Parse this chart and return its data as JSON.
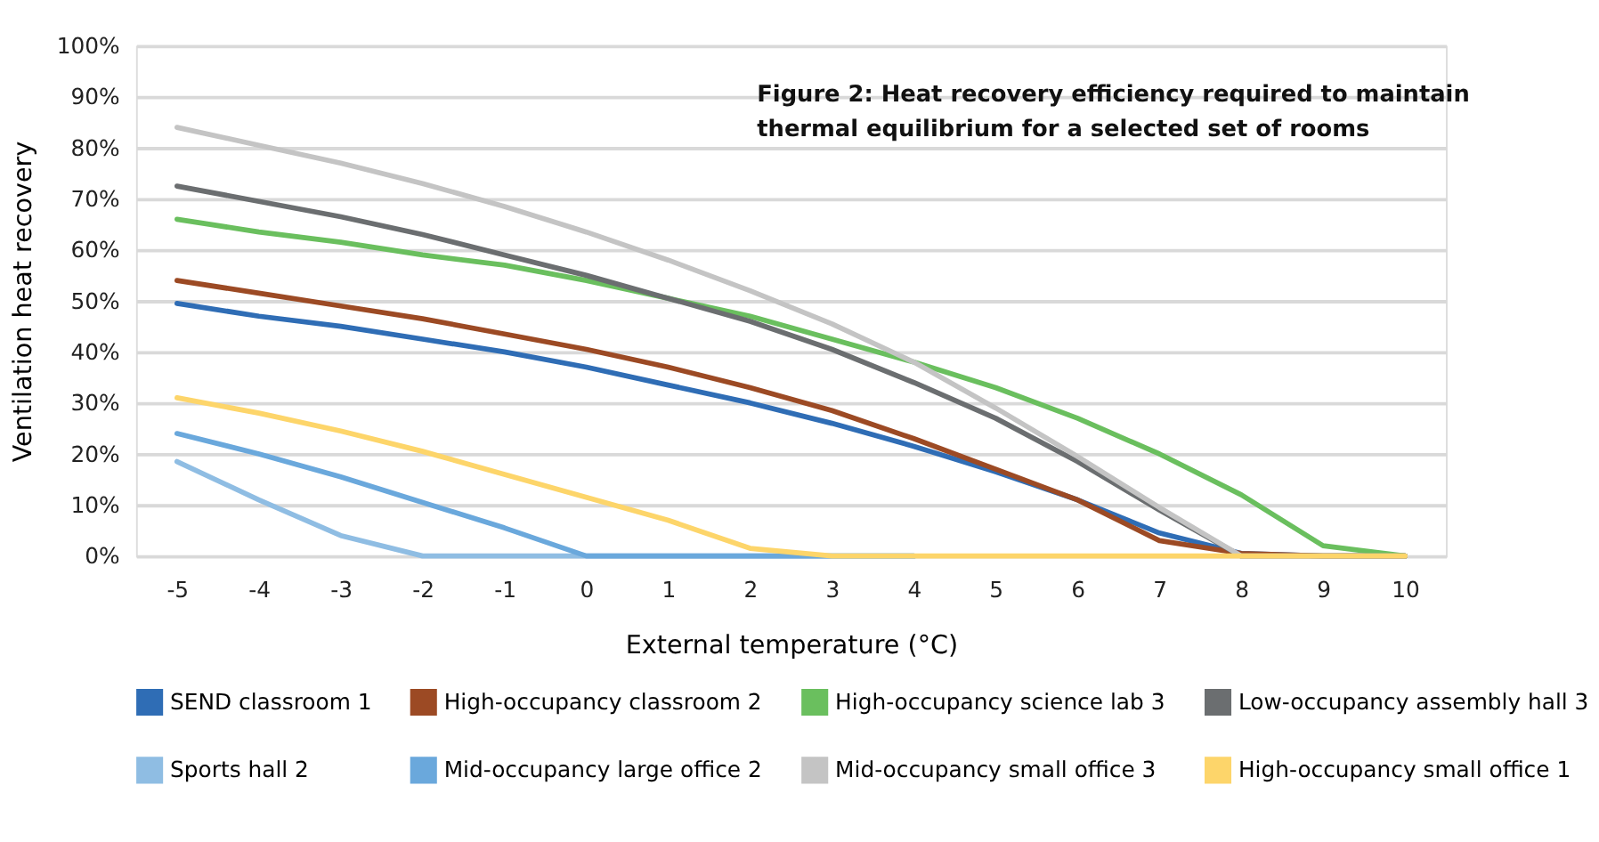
{
  "chart_data": {
    "type": "line",
    "title": "Figure 2: Heat recovery efficiency required to maintain thermal equilibrium for a selected set of rooms",
    "xlabel": "External temperature (°C)",
    "ylabel": "Ventilation heat recovery",
    "categories": [
      "-5",
      "-4",
      "-3",
      "-2",
      "-1",
      "0",
      "1",
      "2",
      "3",
      "4",
      "5",
      "6",
      "7",
      "8",
      "9",
      "10"
    ],
    "series": [
      {
        "name": "SEND classroom 1",
        "color": "#2f6db5",
        "values": [
          49.5,
          47,
          45,
          42.5,
          40,
          37,
          33.5,
          30,
          26,
          21.5,
          16.5,
          11,
          4.5,
          0.5,
          0,
          0
        ]
      },
      {
        "name": "High-occupancy classroom 2",
        "color": "#9c4a24",
        "values": [
          54,
          51.5,
          49,
          46.5,
          43.5,
          40.5,
          37,
          33,
          28.5,
          23,
          17,
          11,
          3,
          0.5,
          0,
          0
        ]
      },
      {
        "name": "High-occupancy science lab 3",
        "color": "#6abf5e",
        "values": [
          66,
          63.5,
          61.5,
          59,
          57,
          54,
          50.5,
          47,
          42.5,
          38,
          33,
          27,
          20,
          12,
          2,
          0
        ]
      },
      {
        "name": "Low-occupancy assembly hall 3",
        "color": "#6b6e70",
        "values": [
          72.5,
          69.5,
          66.5,
          63,
          59,
          55,
          50.5,
          46,
          40.5,
          34,
          27,
          18.5,
          9,
          0,
          0,
          0
        ]
      },
      {
        "name": "Sports hall 2",
        "color": "#8fbde3",
        "values": [
          18.5,
          11,
          4,
          0,
          0,
          0,
          0,
          0,
          0,
          0,
          null,
          null,
          null,
          null,
          null,
          null
        ]
      },
      {
        "name": "Mid-occupancy large office 2",
        "color": "#6aa8dc",
        "values": [
          24,
          20,
          15.5,
          10.5,
          5.5,
          0,
          0,
          0,
          0,
          0,
          null,
          null,
          null,
          null,
          null,
          null
        ]
      },
      {
        "name": "Mid-occupancy small office 3",
        "color": "#c4c4c4",
        "values": [
          84,
          80.5,
          77,
          73,
          68.5,
          63.5,
          58,
          52,
          45.5,
          38,
          29,
          19.5,
          9.5,
          0,
          0,
          0
        ]
      },
      {
        "name": "High-occupancy small office 1",
        "color": "#fdd56a",
        "values": [
          31,
          28,
          24.5,
          20.5,
          16,
          11.5,
          7,
          1.5,
          0,
          0,
          0,
          0,
          0,
          0,
          0,
          0
        ]
      }
    ],
    "ylim": [
      0,
      100
    ],
    "yticks": [
      {
        "value": 0,
        "label": "0%"
      },
      {
        "value": 10,
        "label": "10%"
      },
      {
        "value": 20,
        "label": "20%"
      },
      {
        "value": 30,
        "label": "30%"
      },
      {
        "value": 40,
        "label": "40%"
      },
      {
        "value": 50,
        "label": "50%"
      },
      {
        "value": 60,
        "label": "60%"
      },
      {
        "value": 70,
        "label": "70%"
      },
      {
        "value": 80,
        "label": "80%"
      },
      {
        "value": 90,
        "label": "90%"
      },
      {
        "value": 100,
        "label": "100%"
      }
    ],
    "grid": "y",
    "legend": "bottom",
    "marker": "none",
    "line_style": "solid"
  }
}
